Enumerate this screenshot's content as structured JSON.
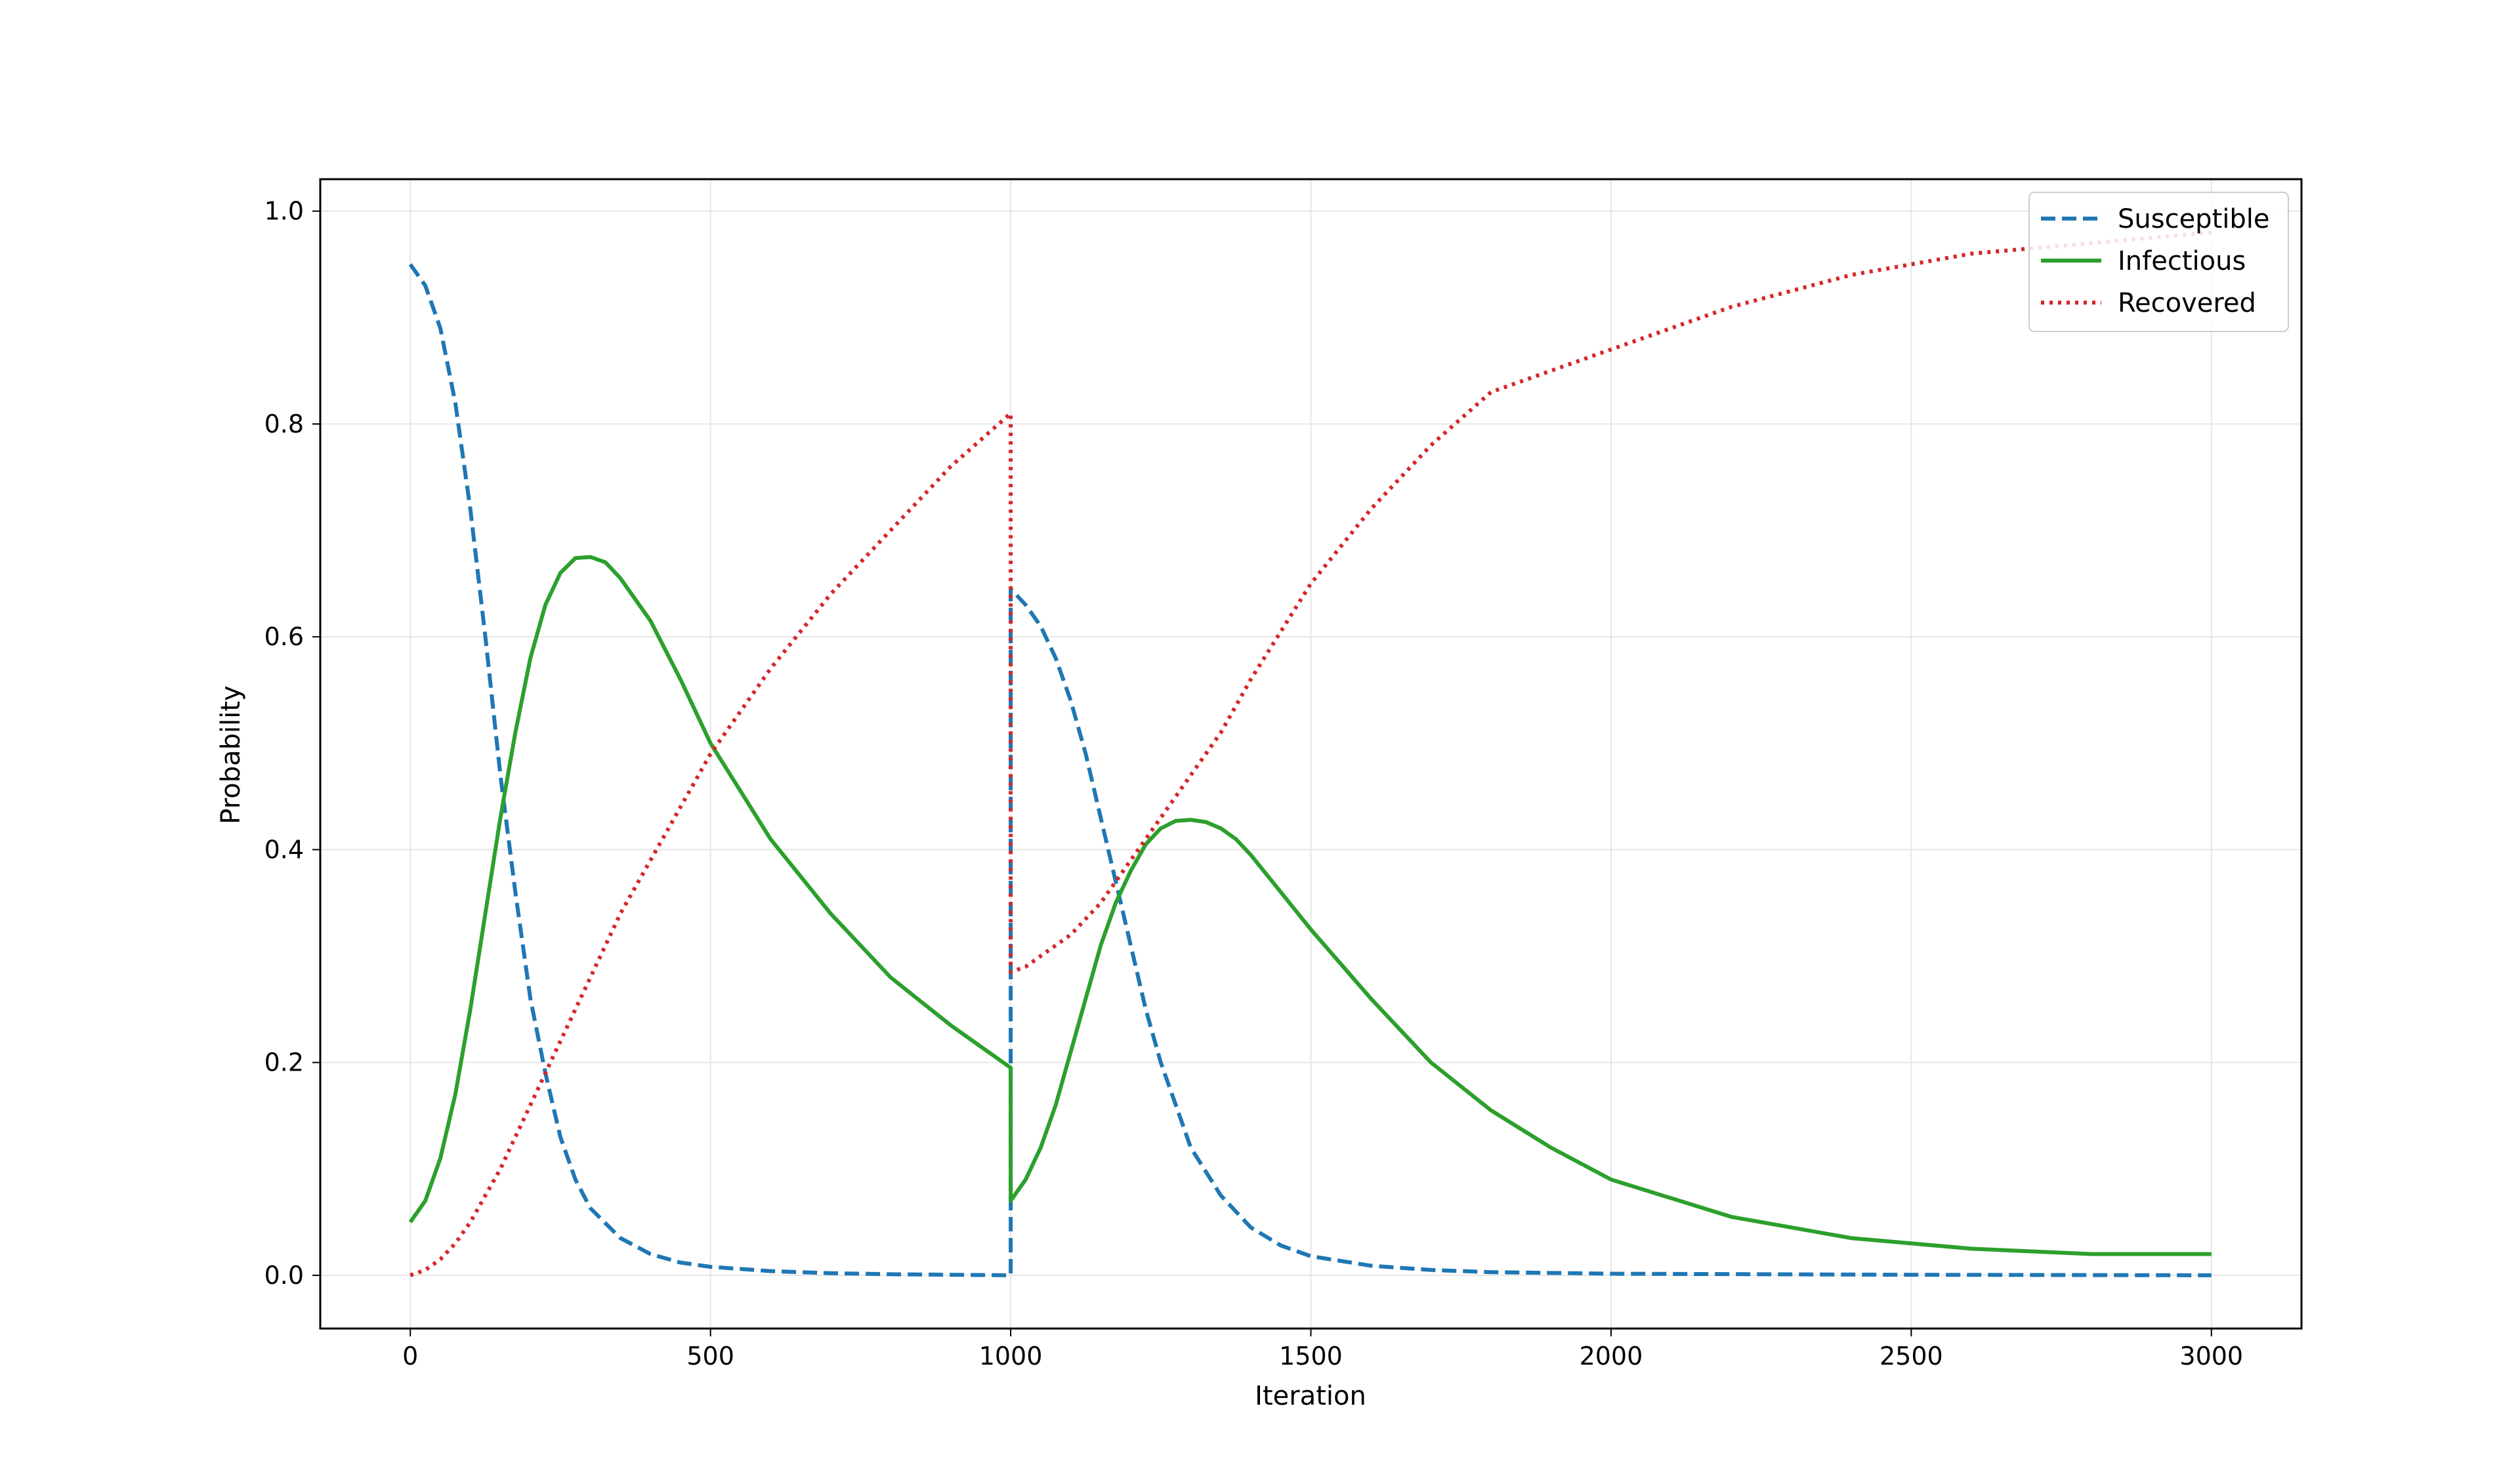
{
  "chart_data": {
    "type": "line",
    "xlabel": "Iteration",
    "ylabel": "Probability",
    "xlim": [
      -150,
      3150
    ],
    "ylim": [
      -0.05,
      1.03
    ],
    "xticks": [
      0,
      500,
      1000,
      1500,
      2000,
      2500,
      3000
    ],
    "xtick_labels": [
      "0",
      "500",
      "1000",
      "1500",
      "2000",
      "2500",
      "3000"
    ],
    "yticks": [
      0.0,
      0.2,
      0.4,
      0.6,
      0.8,
      1.0
    ],
    "ytick_labels": [
      "0.0",
      "0.2",
      "0.4",
      "0.6",
      "0.8",
      "1.0"
    ],
    "grid": true,
    "legend_position": "top-right",
    "series": [
      {
        "name": "Susceptible",
        "color": "#1f77b4",
        "style": "dashed",
        "x": [
          0,
          25,
          50,
          75,
          100,
          125,
          150,
          175,
          200,
          225,
          250,
          275,
          300,
          350,
          400,
          450,
          500,
          600,
          700,
          800,
          900,
          1000,
          1000,
          1025,
          1050,
          1075,
          1100,
          1125,
          1150,
          1175,
          1200,
          1225,
          1250,
          1275,
          1300,
          1350,
          1400,
          1450,
          1500,
          1600,
          1700,
          1800,
          2000,
          2500,
          3000
        ],
        "y": [
          0.95,
          0.93,
          0.89,
          0.82,
          0.72,
          0.6,
          0.47,
          0.36,
          0.26,
          0.19,
          0.13,
          0.09,
          0.063,
          0.035,
          0.02,
          0.012,
          0.008,
          0.004,
          0.002,
          0.001,
          0.0005,
          0.0,
          0.645,
          0.63,
          0.61,
          0.58,
          0.54,
          0.49,
          0.43,
          0.37,
          0.31,
          0.25,
          0.2,
          0.16,
          0.12,
          0.075,
          0.045,
          0.028,
          0.018,
          0.009,
          0.005,
          0.003,
          0.0015,
          0.0005,
          0.0
        ]
      },
      {
        "name": "Infectious",
        "color": "#2ca02c",
        "style": "solid",
        "x": [
          0,
          25,
          50,
          75,
          100,
          125,
          150,
          175,
          200,
          225,
          250,
          275,
          300,
          325,
          350,
          400,
          450,
          500,
          600,
          700,
          800,
          900,
          1000,
          1000,
          1025,
          1050,
          1075,
          1100,
          1125,
          1150,
          1175,
          1200,
          1225,
          1250,
          1275,
          1300,
          1325,
          1350,
          1375,
          1400,
          1450,
          1500,
          1600,
          1700,
          1800,
          1900,
          2000,
          2200,
          2400,
          2600,
          2800,
          3000
        ],
        "y": [
          0.05,
          0.07,
          0.11,
          0.17,
          0.25,
          0.34,
          0.43,
          0.51,
          0.58,
          0.63,
          0.66,
          0.674,
          0.675,
          0.67,
          0.655,
          0.615,
          0.56,
          0.5,
          0.41,
          0.34,
          0.28,
          0.235,
          0.195,
          0.07,
          0.09,
          0.12,
          0.16,
          0.21,
          0.26,
          0.31,
          0.35,
          0.38,
          0.405,
          0.42,
          0.427,
          0.428,
          0.426,
          0.42,
          0.41,
          0.395,
          0.36,
          0.325,
          0.26,
          0.2,
          0.155,
          0.12,
          0.09,
          0.055,
          0.035,
          0.025,
          0.02,
          0.02
        ]
      },
      {
        "name": "Recovered",
        "color": "#d62728",
        "style": "dotted",
        "x": [
          0,
          25,
          50,
          75,
          100,
          125,
          150,
          175,
          200,
          250,
          300,
          350,
          400,
          450,
          500,
          600,
          700,
          800,
          900,
          1000,
          1000,
          1025,
          1050,
          1100,
          1150,
          1200,
          1250,
          1300,
          1350,
          1400,
          1500,
          1600,
          1700,
          1800,
          1900,
          2000,
          2200,
          2400,
          2600,
          2800,
          3000
        ],
        "y": [
          0.0,
          0.005,
          0.015,
          0.03,
          0.05,
          0.075,
          0.1,
          0.13,
          0.16,
          0.22,
          0.28,
          0.34,
          0.39,
          0.44,
          0.49,
          0.57,
          0.64,
          0.7,
          0.76,
          0.81,
          0.285,
          0.29,
          0.3,
          0.32,
          0.35,
          0.39,
          0.43,
          0.47,
          0.51,
          0.56,
          0.65,
          0.72,
          0.78,
          0.83,
          0.85,
          0.87,
          0.91,
          0.94,
          0.96,
          0.97,
          0.98
        ]
      }
    ]
  }
}
